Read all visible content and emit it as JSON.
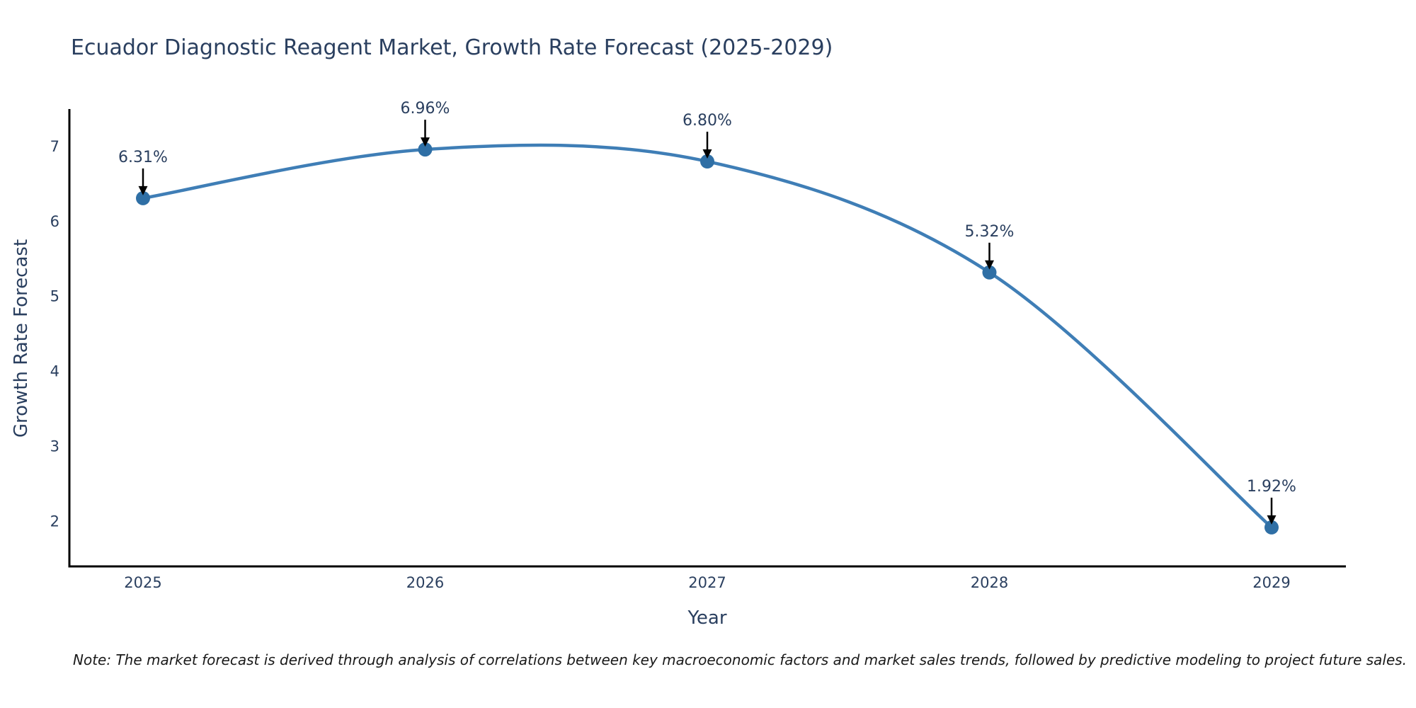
{
  "note": "Note: The market forecast is derived through analysis of correlations between key macroeconomic factors and market sales trends, followed by predictive modeling to project future sales.",
  "chart_data": {
    "type": "line",
    "title": "Ecuador Diagnostic Reagent Market, Growth Rate Forecast (2025-2029)",
    "xlabel": "Year",
    "ylabel": "Growth Rate Forecast",
    "categories": [
      "2025",
      "2026",
      "2027",
      "2028",
      "2029"
    ],
    "values": [
      6.31,
      6.96,
      6.8,
      5.32,
      1.92
    ],
    "point_labels": [
      "6.31%",
      "6.96%",
      "6.80%",
      "5.32%",
      "1.92%"
    ],
    "yticks": [
      2,
      3,
      4,
      5,
      6,
      7
    ],
    "ylim": [
      1.4,
      7.48
    ],
    "line_shape": "spline",
    "grid": false,
    "legend": "none",
    "colors": {
      "line": "#3f7eb6",
      "marker": "#2f6fa5",
      "text": "#2a3f5f",
      "axis": "#000000",
      "arrow": "#000000",
      "background": "#ffffff"
    }
  }
}
